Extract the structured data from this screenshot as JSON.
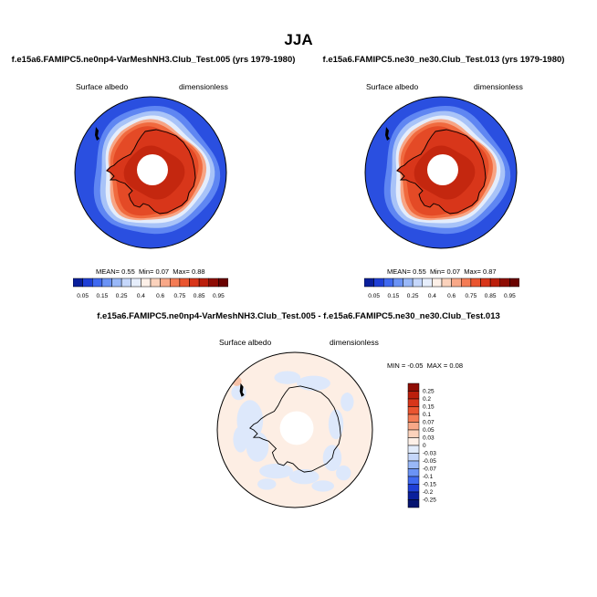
{
  "page": {
    "title": "JJA"
  },
  "panels": [
    {
      "title": "f.e15a6.FAMIPC5.ne0np4-VarMeshNH3.Club_Test.005 (yrs 1979-1980)",
      "variable": "Surface albedo",
      "units": "dimensionless",
      "stats": {
        "mean_label": "MEAN=",
        "mean": "0.55",
        "min_label": "Min=",
        "min": "0.07",
        "max_label": "Max=",
        "max": "0.88"
      },
      "colorbar": {
        "labels": [
          "0.05",
          "0.15",
          "0.25",
          "0.4",
          "0.6",
          "0.75",
          "0.85",
          "0.95"
        ],
        "colors": [
          "#0a1f9c",
          "#1f3fd6",
          "#3f69f0",
          "#6b93f5",
          "#99b8f8",
          "#c5d7fb",
          "#e6eefc",
          "#fdf0e8",
          "#fbd2bc",
          "#f8a888",
          "#f47c55",
          "#ea5530",
          "#d8361a",
          "#bb1f0c",
          "#8e0d04",
          "#6a0200"
        ]
      }
    },
    {
      "title": "f.e15a6.FAMIPC5.ne30_ne30.Club_Test.013 (yrs 1979-1980)",
      "variable": "Surface albedo",
      "units": "dimensionless",
      "stats": {
        "mean_label": "MEAN=",
        "mean": "0.55",
        "min_label": "Min=",
        "min": "0.07",
        "max_label": "Max=",
        "max": "0.87"
      },
      "colorbar": {
        "labels": [
          "0.05",
          "0.15",
          "0.25",
          "0.4",
          "0.6",
          "0.75",
          "0.85",
          "0.95"
        ],
        "colors": [
          "#0a1f9c",
          "#1f3fd6",
          "#3f69f0",
          "#6b93f5",
          "#99b8f8",
          "#c5d7fb",
          "#e6eefc",
          "#fdf0e8",
          "#fbd2bc",
          "#f8a888",
          "#f47c55",
          "#ea5530",
          "#d8361a",
          "#bb1f0c",
          "#8e0d04",
          "#6a0200"
        ]
      }
    },
    {
      "title": "f.e15a6.FAMIPC5.ne0np4-VarMeshNH3.Club_Test.005 - f.e15a6.FAMIPC5.ne30_ne30.Club_Test.013",
      "variable": "Surface albedo",
      "units": "dimensionless",
      "stats": {
        "min_label": "MIN =",
        "min": "-0.05",
        "max_label": "MAX =",
        "max": "0.08"
      },
      "colorbar": {
        "labels": [
          "0.25",
          "0.2",
          "0.15",
          "0.1",
          "0.07",
          "0.05",
          "0.03",
          "0",
          "-0.03",
          "-0.05",
          "-0.07",
          "-0.1",
          "-0.15",
          "-0.2",
          "-0.25"
        ],
        "colors": [
          "#8e0d04",
          "#bb1f0c",
          "#d8361a",
          "#ea5530",
          "#f47c55",
          "#f8a888",
          "#fbd2bc",
          "#fdf0e8",
          "#e2ecfc",
          "#c5d7fb",
          "#99b8f8",
          "#6b93f5",
          "#3f69f0",
          "#1f3fd6",
          "#0a1f9c",
          "#061470"
        ]
      }
    }
  ],
  "chart_data": [
    {
      "type": "heatmap",
      "projection": "south polar stereographic",
      "title": "f.e15a6.FAMIPC5.ne0np4-VarMeshNH3.Club_Test.005 (yrs 1979-1980)",
      "variable": "Surface albedo",
      "units": "dimensionless",
      "mean": 0.55,
      "min": 0.07,
      "max": 0.88,
      "levels": [
        0.05,
        0.1,
        0.15,
        0.2,
        0.25,
        0.3,
        0.4,
        0.5,
        0.6,
        0.7,
        0.75,
        0.8,
        0.85,
        0.9,
        0.95
      ]
    },
    {
      "type": "heatmap",
      "projection": "south polar stereographic",
      "title": "f.e15a6.FAMIPC5.ne30_ne30.Club_Test.013 (yrs 1979-1980)",
      "variable": "Surface albedo",
      "units": "dimensionless",
      "mean": 0.55,
      "min": 0.07,
      "max": 0.87,
      "levels": [
        0.05,
        0.1,
        0.15,
        0.2,
        0.25,
        0.3,
        0.4,
        0.5,
        0.6,
        0.7,
        0.75,
        0.8,
        0.85,
        0.9,
        0.95
      ]
    },
    {
      "type": "heatmap",
      "projection": "south polar stereographic",
      "title": "f.e15a6.FAMIPC5.ne0np4-VarMeshNH3.Club_Test.005 - f.e15a6.FAMIPC5.ne30_ne30.Club_Test.013",
      "variable": "Surface albedo",
      "units": "dimensionless",
      "min": -0.05,
      "max": 0.08,
      "levels": [
        -0.25,
        -0.2,
        -0.15,
        -0.1,
        -0.07,
        -0.05,
        -0.03,
        0,
        0.03,
        0.05,
        0.07,
        0.1,
        0.15,
        0.2,
        0.25
      ]
    }
  ]
}
